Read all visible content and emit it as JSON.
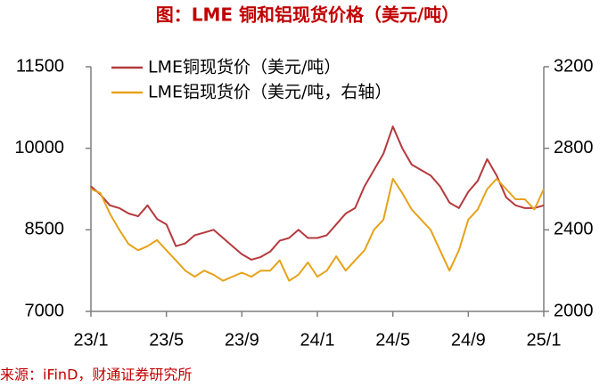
{
  "chart_data": {
    "type": "line",
    "title": "图：LME 铜和铝现货价格（美元/吨）",
    "source": "来源：iFinD，财通证券研究所",
    "x": [
      "23/1",
      null,
      null,
      null,
      null,
      null,
      null,
      null,
      "23/5",
      null,
      null,
      null,
      null,
      null,
      null,
      null,
      "23/9",
      null,
      null,
      null,
      null,
      null,
      null,
      null,
      "24/1",
      null,
      null,
      null,
      null,
      null,
      null,
      null,
      "24/5",
      null,
      null,
      null,
      null,
      null,
      null,
      null,
      "24/9",
      null,
      null,
      null,
      null,
      null,
      null,
      null,
      "25/1"
    ],
    "series": [
      {
        "name": "LME铜现货价（美元/吨）",
        "color": "#b5393d",
        "axis": "y",
        "values": [
          9300,
          9150,
          8950,
          8900,
          8800,
          8750,
          8950,
          8700,
          8600,
          8200,
          8250,
          8400,
          8450,
          8500,
          8350,
          8200,
          8050,
          7950,
          8000,
          8100,
          8300,
          8350,
          8500,
          8350,
          8350,
          8400,
          8600,
          8800,
          8900,
          9300,
          9600,
          9900,
          10400,
          10000,
          9700,
          9600,
          9500,
          9300,
          9000,
          8900,
          9200,
          9400,
          9800,
          9500,
          9100,
          8950,
          8900,
          8900,
          8950
        ]
      },
      {
        "name": "LME铝现货价（美元/吨，右轴）",
        "color": "#e6a21a",
        "axis": "y2",
        "values": [
          2600,
          2580,
          2480,
          2400,
          2330,
          2300,
          2320,
          2350,
          2300,
          2250,
          2200,
          2170,
          2200,
          2180,
          2150,
          2170,
          2190,
          2170,
          2200,
          2200,
          2250,
          2150,
          2180,
          2240,
          2170,
          2200,
          2270,
          2200,
          2250,
          2300,
          2400,
          2450,
          2650,
          2580,
          2500,
          2450,
          2400,
          2300,
          2200,
          2300,
          2450,
          2500,
          2600,
          2650,
          2600,
          2550,
          2550,
          2500,
          2600
        ]
      }
    ],
    "ylim": [
      7000,
      11500
    ],
    "yticks": [
      7000,
      8500,
      10000,
      11500
    ],
    "y2lim": [
      2000,
      3200
    ],
    "y2ticks": [
      2000,
      2400,
      2800,
      3200
    ]
  }
}
